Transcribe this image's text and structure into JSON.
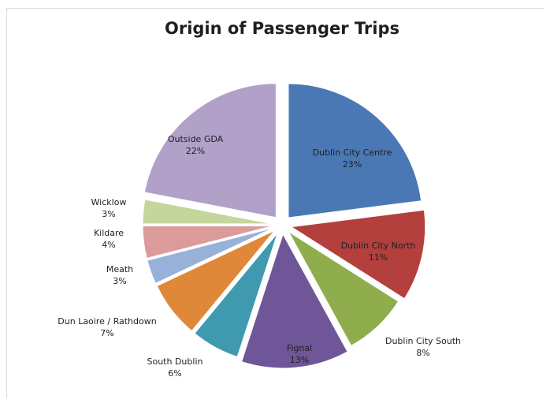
{
  "chart_data": {
    "type": "pie",
    "title": "Origin of Passenger Trips",
    "exploded": true,
    "slices": [
      {
        "label": "Dublin City Centre",
        "value": 23,
        "value_label": "23%",
        "color": "#4a78b4",
        "label_color": "#1f1f1f"
      },
      {
        "label": "Dublin City North",
        "value": 11,
        "value_label": "11%",
        "color": "#b3403d",
        "label_color": "#1f1f1f"
      },
      {
        "label": "Dublin City South",
        "value": 8,
        "value_label": "8%",
        "color": "#8fad4d",
        "label_color": "#1f1f1f"
      },
      {
        "label": "Fignal",
        "value": 13,
        "value_label": "13%",
        "color": "#6f5698",
        "label_color": "#1f1f1f"
      },
      {
        "label": "South Dublin",
        "value": 6,
        "value_label": "6%",
        "color": "#3f9ab0",
        "label_color": "#1f1f1f"
      },
      {
        "label": "Dun Laoire / Rathdown",
        "value": 7,
        "value_label": "7%",
        "color": "#e0883a",
        "label_color": "#1f1f1f"
      },
      {
        "label": "Meath",
        "value": 3,
        "value_label": "3%",
        "color": "#98b1d8",
        "label_color": "#1f1f1f"
      },
      {
        "label": "Kildare",
        "value": 4,
        "value_label": "4%",
        "color": "#da9b9a",
        "label_color": "#1f1f1f"
      },
      {
        "label": "Wicklow",
        "value": 3,
        "value_label": "3%",
        "color": "#c4d69b",
        "label_color": "#1f1f1f"
      },
      {
        "label": "Outside GDA",
        "value": 22,
        "value_label": "22%",
        "color": "#b1a0c8",
        "label_color": "#1f1f1f"
      }
    ]
  }
}
